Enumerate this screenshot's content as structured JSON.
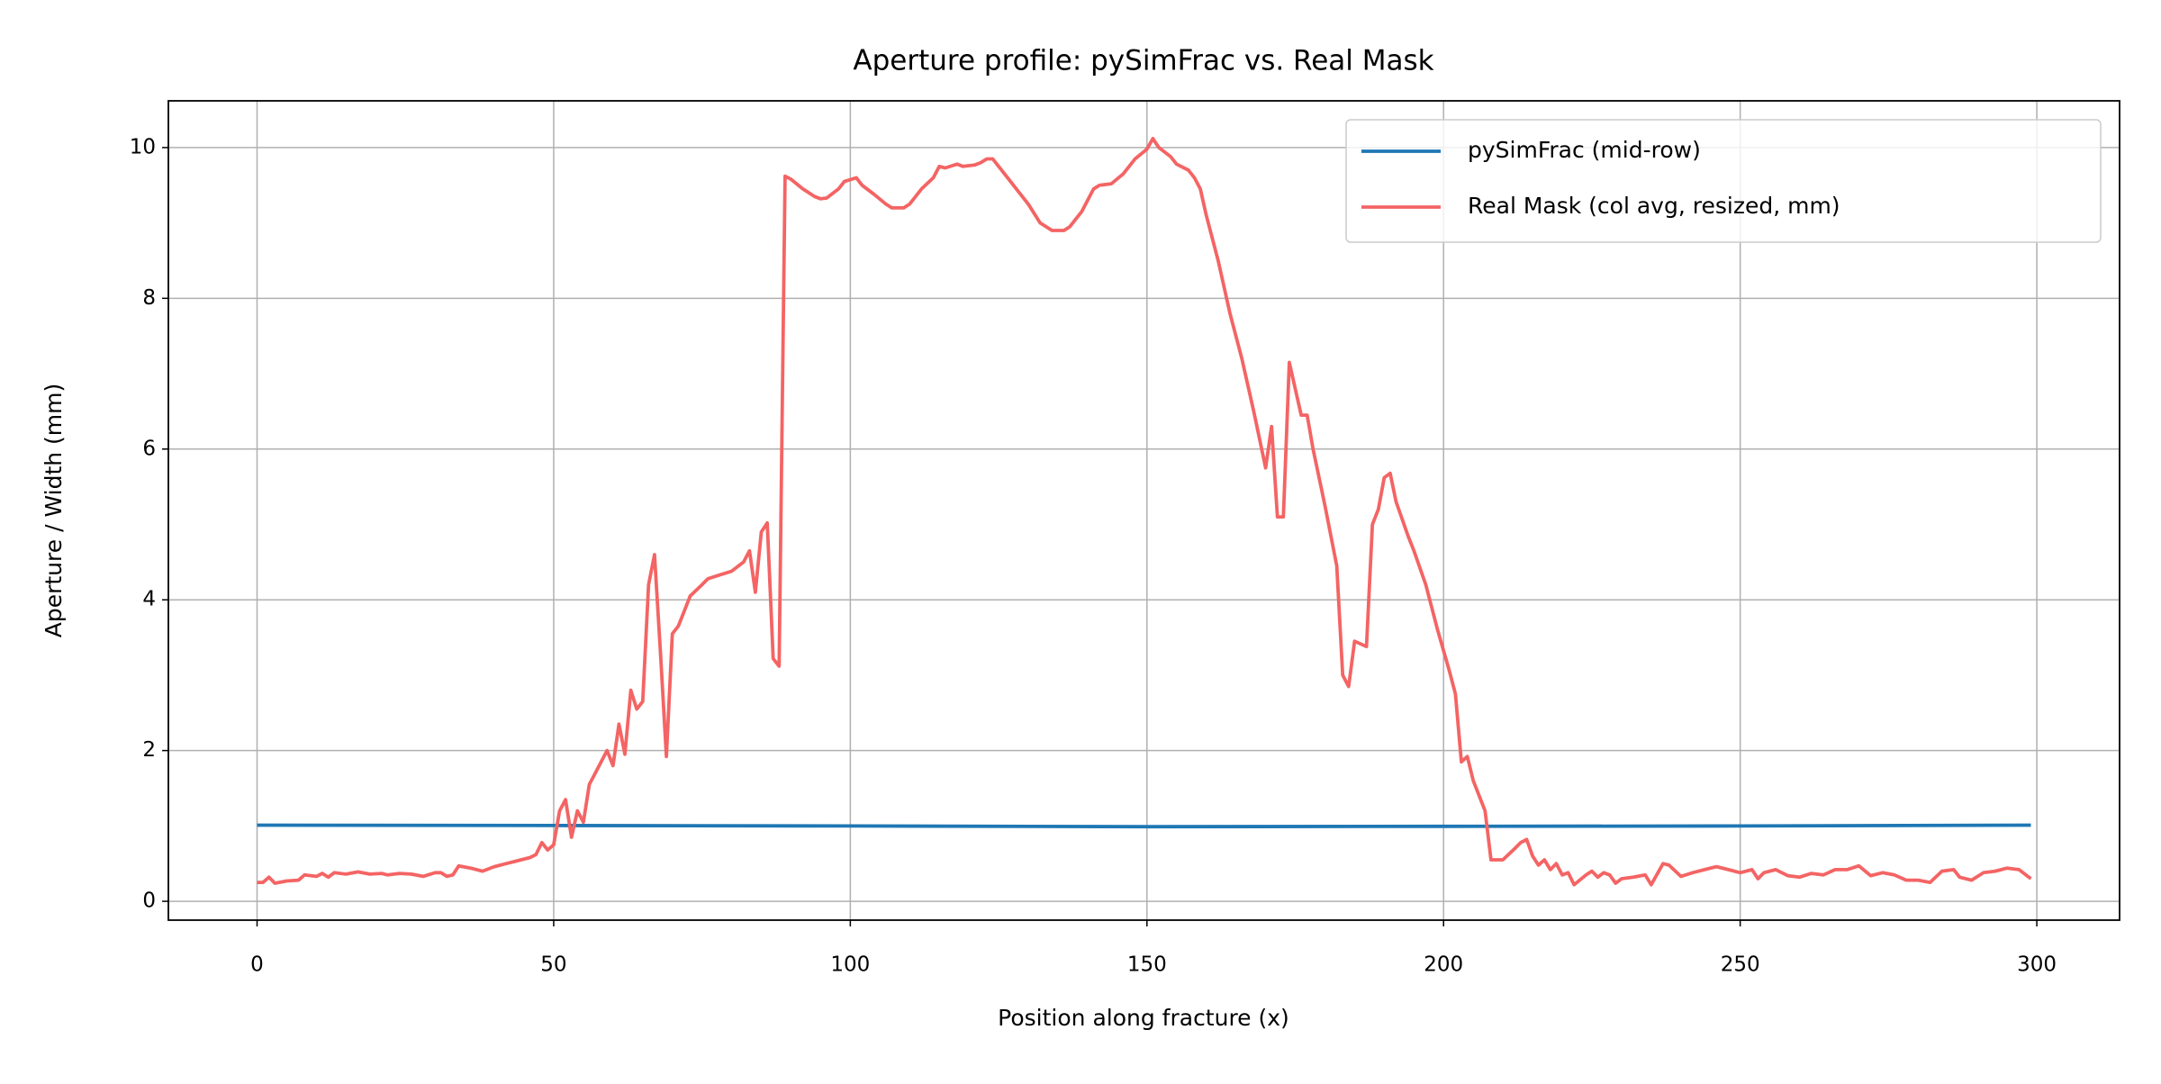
{
  "chart_data": {
    "type": "line",
    "title": "Aperture profile: pySimFrac vs. Real Mask",
    "x_label": "Position along fracture (x)",
    "y_label": "Aperture / Width (mm)",
    "xlim": [
      -14.95,
      313.95
    ],
    "ylim": [
      -0.25,
      10.62
    ],
    "xticks": [
      0,
      50,
      100,
      150,
      200,
      250,
      300
    ],
    "yticks": [
      0,
      2,
      4,
      6,
      8,
      10
    ],
    "grid": true,
    "legend": "upper right",
    "series": [
      {
        "name": "pySimFrac (mid-row)",
        "color": "#1f77b4",
        "x": [
          0,
          50,
          100,
          150,
          200,
          250,
          299
        ],
        "values": [
          1.01,
          1.005,
          1.0,
          0.99,
          0.995,
          1.0,
          1.01
        ]
      },
      {
        "name": "Real Mask (col avg, resized, mm)",
        "color": "#f46464",
        "x": [
          0,
          1,
          2,
          3,
          5,
          7,
          8,
          10,
          11,
          12,
          13,
          15,
          17,
          19,
          21,
          22,
          24,
          26,
          28,
          30,
          31,
          32,
          33,
          34,
          36,
          38,
          40,
          42,
          44,
          46,
          47,
          48,
          49,
          50,
          51,
          52,
          53,
          54,
          55,
          56,
          57,
          59,
          60,
          61,
          62,
          63,
          64,
          65,
          66,
          67,
          68,
          69,
          70,
          71,
          72,
          73,
          75,
          76,
          78,
          80,
          82,
          83,
          84,
          85,
          86,
          87,
          88,
          89,
          90,
          92,
          94,
          95,
          96,
          98,
          99,
          101,
          102,
          104,
          106,
          107,
          109,
          110,
          112,
          114,
          115,
          116,
          118,
          119,
          121,
          122,
          123,
          124,
          126,
          128,
          130,
          132,
          134,
          136,
          137,
          139,
          141,
          142,
          144,
          146,
          148,
          150,
          151,
          152,
          154,
          155,
          157,
          158,
          159,
          160,
          162,
          164,
          166,
          168,
          170,
          171,
          172,
          173,
          174,
          176,
          177,
          178,
          180,
          182,
          183,
          184,
          185,
          187,
          188,
          189,
          190,
          191,
          192,
          194,
          195,
          197,
          199,
          201,
          202,
          203,
          204,
          205,
          207,
          208,
          210,
          212,
          213,
          214,
          215,
          216,
          217,
          218,
          219,
          220,
          221,
          222,
          224,
          225,
          226,
          227,
          228,
          229,
          230,
          232,
          234,
          235,
          237,
          238,
          240,
          242,
          244,
          246,
          248,
          250,
          252,
          253,
          254,
          256,
          258,
          260,
          262,
          264,
          266,
          268,
          270,
          272,
          274,
          276,
          278,
          280,
          282,
          284,
          286,
          287,
          289,
          291,
          293,
          295,
          297,
          299
        ],
        "values": [
          0.25,
          0.25,
          0.32,
          0.24,
          0.27,
          0.28,
          0.35,
          0.33,
          0.37,
          0.32,
          0.38,
          0.36,
          0.39,
          0.36,
          0.37,
          0.35,
          0.37,
          0.36,
          0.33,
          0.38,
          0.38,
          0.33,
          0.35,
          0.47,
          0.44,
          0.4,
          0.46,
          0.5,
          0.54,
          0.58,
          0.62,
          0.78,
          0.68,
          0.75,
          1.2,
          1.35,
          0.85,
          1.2,
          1.05,
          1.55,
          1.7,
          2.0,
          1.8,
          2.35,
          1.95,
          2.8,
          2.55,
          2.65,
          4.2,
          4.6,
          3.3,
          1.92,
          3.55,
          3.65,
          3.85,
          4.05,
          4.2,
          4.28,
          4.33,
          4.38,
          4.5,
          4.65,
          4.1,
          4.9,
          5.02,
          3.22,
          3.12,
          9.62,
          9.58,
          9.45,
          9.35,
          9.32,
          9.33,
          9.45,
          9.55,
          9.6,
          9.5,
          9.38,
          9.25,
          9.2,
          9.2,
          9.25,
          9.45,
          9.6,
          9.75,
          9.73,
          9.78,
          9.75,
          9.77,
          9.8,
          9.85,
          9.85,
          9.65,
          9.45,
          9.25,
          9.0,
          8.9,
          8.9,
          8.95,
          9.15,
          9.45,
          9.5,
          9.52,
          9.65,
          9.85,
          9.98,
          10.12,
          10.0,
          9.88,
          9.78,
          9.7,
          9.6,
          9.45,
          9.1,
          8.5,
          7.8,
          7.2,
          6.5,
          5.75,
          6.3,
          5.1,
          5.1,
          7.15,
          6.45,
          6.45,
          6.0,
          5.25,
          4.45,
          3.0,
          2.85,
          3.45,
          3.38,
          5.0,
          5.2,
          5.62,
          5.68,
          5.3,
          4.85,
          4.65,
          4.2,
          3.6,
          3.05,
          2.75,
          1.85,
          1.92,
          1.6,
          1.2,
          0.55,
          0.55,
          0.7,
          0.78,
          0.82,
          0.6,
          0.48,
          0.55,
          0.42,
          0.5,
          0.35,
          0.38,
          0.22,
          0.35,
          0.4,
          0.32,
          0.38,
          0.35,
          0.24,
          0.3,
          0.32,
          0.35,
          0.22,
          0.5,
          0.48,
          0.33,
          0.38,
          0.42,
          0.46,
          0.42,
          0.38,
          0.42,
          0.3,
          0.38,
          0.42,
          0.34,
          0.32,
          0.37,
          0.35,
          0.42,
          0.42,
          0.47,
          0.34,
          0.38,
          0.35,
          0.28,
          0.28,
          0.25,
          0.4,
          0.42,
          0.32,
          0.28,
          0.38,
          0.4,
          0.44,
          0.42,
          0.3
        ]
      }
    ]
  }
}
